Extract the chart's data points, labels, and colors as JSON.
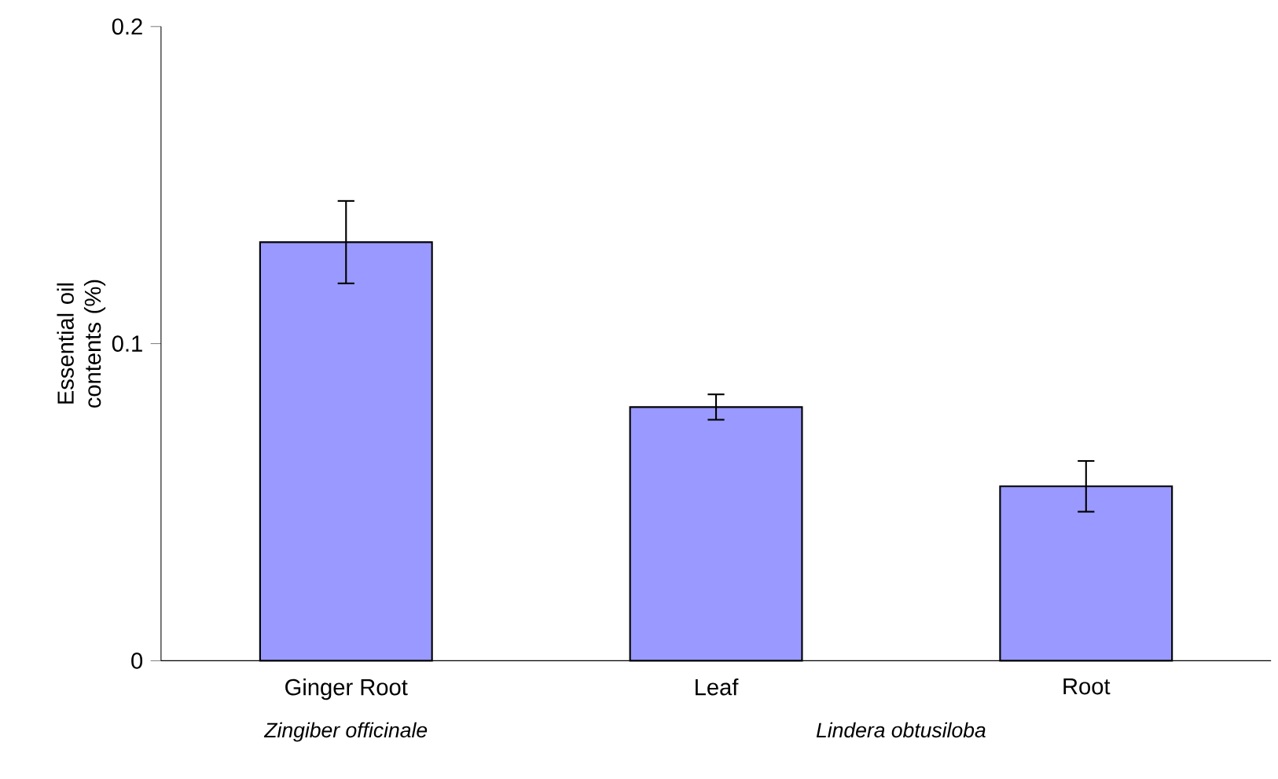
{
  "chart_data": {
    "type": "bar",
    "ylabel": "Essential oil contents (%)",
    "categories": [
      "Ginger Root",
      "Leaf",
      "Root"
    ],
    "values": [
      0.132,
      0.08,
      0.055
    ],
    "errors": [
      0.013,
      0.004,
      0.008
    ],
    "color": "#9999ff",
    "ylim": [
      0,
      0.2
    ],
    "yticks": [
      0,
      0.1,
      0.2
    ],
    "annotations": [
      "Zingiber officinale",
      "Lindera obtusiloba"
    ]
  }
}
